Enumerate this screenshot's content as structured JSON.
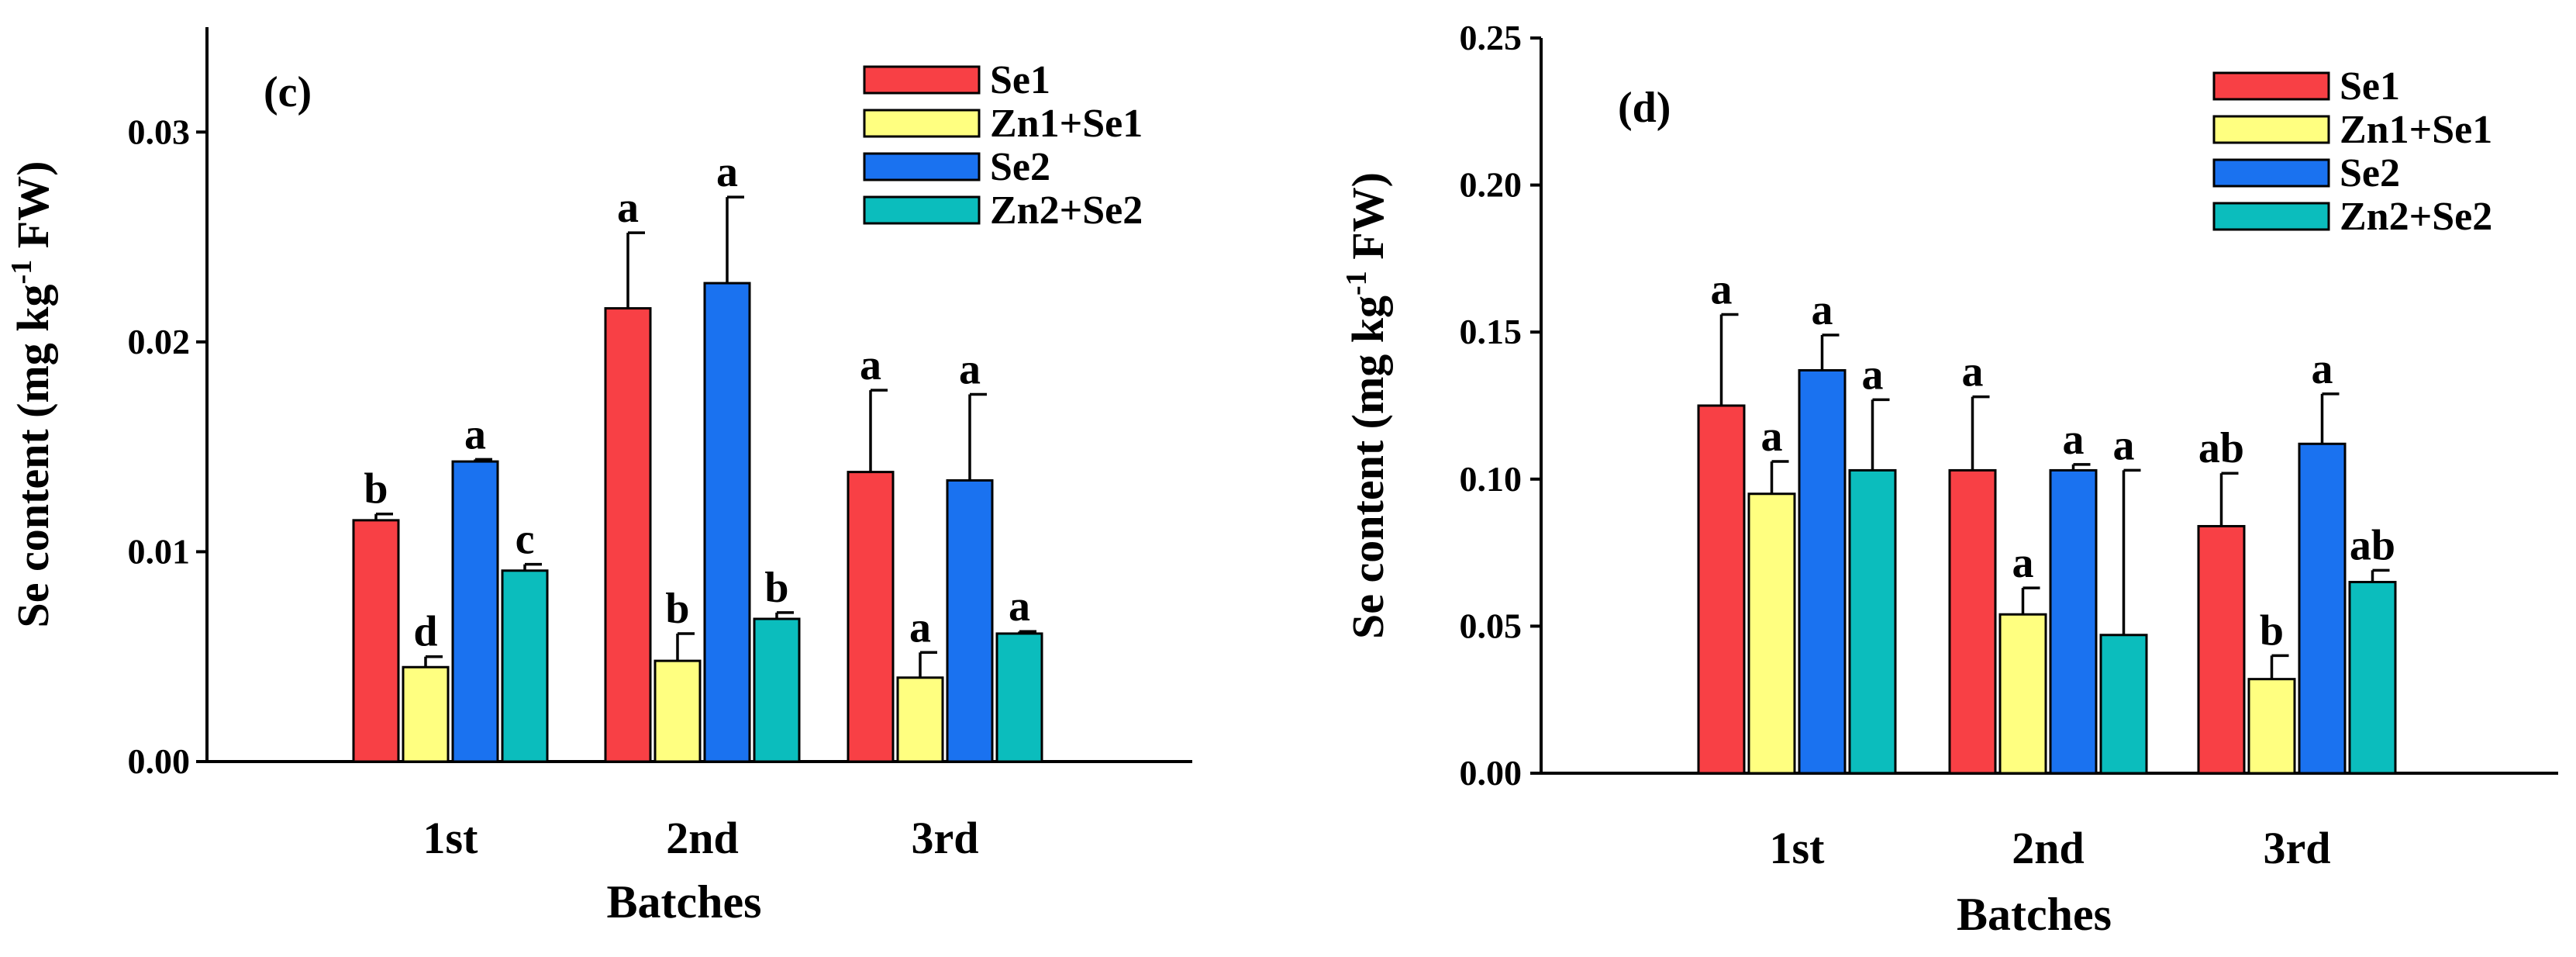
{
  "colors": {
    "Se1": "#f84045",
    "Zn1+Se1": "#ffff80",
    "Se2": "#1a72f0",
    "Zn2+Se2": "#0bbdbd"
  },
  "chart_data": [
    {
      "type": "bar",
      "panel_label": "(c)",
      "ylabel_main": "Se content (mg kg",
      "ylabel_sup": "-1",
      "ylabel_tail": " FW)",
      "xlabel": "Batches",
      "categories": [
        "1st",
        "2nd",
        "3rd"
      ],
      "ylim": [
        0,
        0.035
      ],
      "yticks": [
        0,
        0.01,
        0.02,
        0.03
      ],
      "yticklabels": [
        "0.00",
        "0.01",
        "0.02",
        "0.03"
      ],
      "series": [
        {
          "name": "Se1",
          "values": [
            0.0115,
            0.0216,
            0.0138
          ],
          "errors": [
            0.0003,
            0.0036,
            0.0039
          ],
          "letters": [
            "b",
            "a",
            "a"
          ]
        },
        {
          "name": "Zn1+Se1",
          "values": [
            0.0045,
            0.0048,
            0.004
          ],
          "errors": [
            0.0005,
            0.0013,
            0.0012
          ],
          "letters": [
            "d",
            "b",
            "a"
          ]
        },
        {
          "name": "Se2",
          "values": [
            0.0143,
            0.0228,
            0.0134
          ],
          "errors": [
            0.0001,
            0.0041,
            0.0041
          ],
          "letters": [
            "a",
            "a",
            "a"
          ]
        },
        {
          "name": "Zn2+Se2",
          "values": [
            0.0091,
            0.0068,
            0.0061
          ],
          "errors": [
            0.0003,
            0.0003,
            0.0001
          ],
          "letters": [
            "c",
            "b",
            "a"
          ]
        }
      ]
    },
    {
      "type": "bar",
      "panel_label": "(d)",
      "ylabel_main": "Se content (mg kg",
      "ylabel_sup": "-1",
      "ylabel_tail": " FW)",
      "xlabel": "Batches",
      "categories": [
        "1st",
        "2nd",
        "3rd"
      ],
      "ylim": [
        0,
        0.25
      ],
      "yticks": [
        0,
        0.05,
        0.1,
        0.15,
        0.2,
        0.25
      ],
      "yticklabels": [
        "0.00",
        "0.05",
        "0.10",
        "0.15",
        "0.20",
        "0.25"
      ],
      "series": [
        {
          "name": "Se1",
          "values": [
            0.125,
            0.103,
            0.084
          ],
          "errors": [
            0.031,
            0.025,
            0.018
          ],
          "letters": [
            "a",
            "a",
            "ab"
          ]
        },
        {
          "name": "Zn1+Se1",
          "values": [
            0.095,
            0.054,
            0.032
          ],
          "errors": [
            0.011,
            0.009,
            0.008
          ],
          "letters": [
            "a",
            "a",
            "b"
          ]
        },
        {
          "name": "Se2",
          "values": [
            0.137,
            0.103,
            0.112
          ],
          "errors": [
            0.012,
            0.002,
            0.017
          ],
          "letters": [
            "a",
            "a",
            "a"
          ]
        },
        {
          "name": "Zn2+Se2",
          "values": [
            0.103,
            0.047,
            0.065
          ],
          "errors": [
            0.024,
            0.056,
            0.004
          ],
          "letters": [
            "a",
            "a",
            "ab"
          ]
        }
      ]
    }
  ]
}
